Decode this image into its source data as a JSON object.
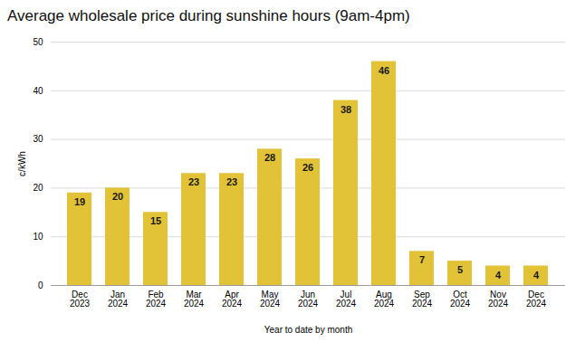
{
  "chart_data": {
    "type": "bar",
    "title": "Average wholesale price during sunshine hours (9am-4pm)",
    "xlabel": "Year to date by month",
    "ylabel": "c/kWh",
    "categories": [
      "Dec\n2023",
      "Jan\n2024",
      "Feb\n2024",
      "Mar\n2024",
      "Apr\n2024",
      "May\n2024",
      "Jun\n2024",
      "Jul\n2024",
      "Aug\n2024",
      "Sep\n2024",
      "Oct\n2024",
      "Nov\n2024",
      "Dec\n2024"
    ],
    "values": [
      19,
      20,
      15,
      23,
      23,
      28,
      26,
      38,
      46,
      7,
      5,
      4,
      4
    ],
    "color": "#E2C237",
    "ylim": [
      0,
      50
    ],
    "yticks": [
      0,
      10,
      20,
      30,
      40,
      50
    ],
    "grid": true,
    "data_labels": true
  }
}
